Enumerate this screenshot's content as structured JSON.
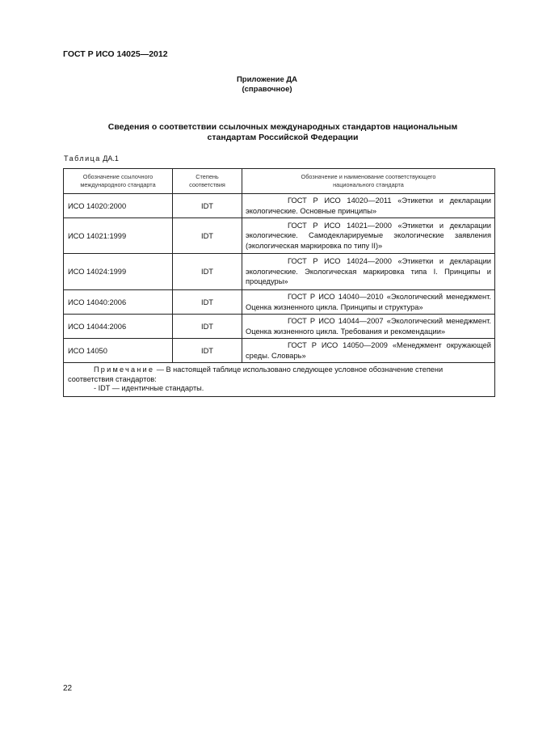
{
  "header": "ГОСТ Р ИСО 14025—2012",
  "appendix": {
    "title": "Приложение ДА",
    "subtitle": "(справочное)"
  },
  "title_line1": "Сведения о соответствии ссылочных международных стандартов национальным",
  "title_line2": "стандартам Российской Федерации",
  "table_label": {
    "word": "Таблица",
    "num": " ДА.1"
  },
  "columns": [
    "Обозначение ссылочного международного стандарта",
    "Степень соответствия",
    "Обозначение и наименование соответствующего национального стандарта"
  ],
  "rows": [
    {
      "intl": "ИСО 14020:2000",
      "degree": "IDT",
      "national": "ГОСТ Р ИСО 14020—2011 «Этикетки и декларации экологические. Основные принципы»"
    },
    {
      "intl": "ИСО 14021:1999",
      "degree": "IDT",
      "national": "ГОСТ Р ИСО 14021—2000 «Этикетки и декларации экологические. Самодекларируемые экологические заявления (экологическая маркировка по типу II)»"
    },
    {
      "intl": "ИСО 14024:1999",
      "degree": "IDT",
      "national": "ГОСТ Р ИСО 14024—2000 «Этикетки и декларации экологические. Экологическая маркировка типа I. Принципы и процедуры»"
    },
    {
      "intl": "ИСО 14040:2006",
      "degree": "IDT",
      "national": "ГОСТ Р ИСО 14040—2010 «Экологический менеджмент. Оценка жизненного цикла. Принципы и структура»"
    },
    {
      "intl": "ИСО 14044:2006",
      "degree": "IDT",
      "national": "ГОСТ Р ИСО 14044—2007 «Экологический менеджмент. Оценка жизненного цикла. Требования и рекомендации»"
    },
    {
      "intl": "ИСО 14050",
      "degree": "IDT",
      "national": "ГОСТ Р ИСО 14050—2009 «Менеджмент окружающей среды. Словарь»"
    }
  ],
  "note": {
    "label": "Примечание",
    "text": " — В настоящей таблице использовано следующее условное обозначение степени соответствия стандартов:",
    "item": "- IDT — идентичные стандарты."
  },
  "page_number": "22"
}
